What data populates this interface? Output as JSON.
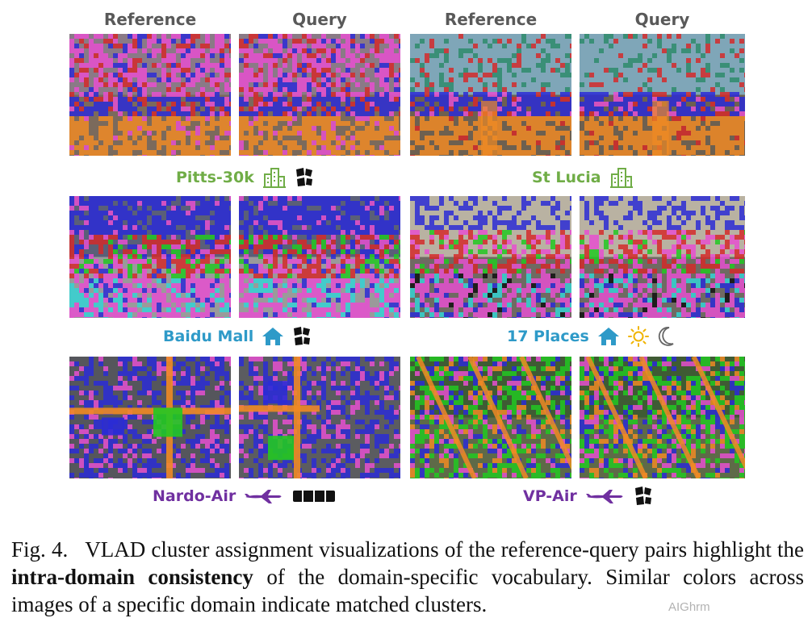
{
  "headers": [
    "Reference",
    "Query",
    "Reference",
    "Query"
  ],
  "domains": [
    {
      "name": "Pitts-30k",
      "color": "#70ad47",
      "icons": [
        "city-buildings-icon",
        "puzzle-pieces-icon"
      ]
    },
    {
      "name": "St Lucia",
      "color": "#70ad47",
      "icons": [
        "city-buildings-icon"
      ]
    },
    {
      "name": "Baidu Mall",
      "color": "#2e9ac8",
      "icons": [
        "house-icon",
        "puzzle-pieces-icon"
      ]
    },
    {
      "name": "17 Places",
      "color": "#2e9ac8",
      "icons": [
        "house-icon",
        "sun-icon",
        "moon-icon"
      ]
    },
    {
      "name": "Nardo-Air",
      "color": "#7030a0",
      "icons": [
        "airplane-icon",
        "film-strip-icon"
      ]
    },
    {
      "name": "VP-Air",
      "color": "#7030a0",
      "icons": [
        "airplane-icon",
        "puzzle-pieces-icon"
      ]
    }
  ],
  "caption": {
    "prefix": "Fig. 4.",
    "text_before": "VLAD cluster assignment visualizations of the reference-query pairs highlight the",
    "bold": "intra-domain consistency",
    "text_after": "of the domain-specific vocabulary. Similar colors across images of a specific domain indicate matched clusters."
  },
  "watermark": "AIGhrm",
  "colors": {
    "cluster_blue": "#2b2bd6",
    "cluster_pink": "#e64fd0",
    "cluster_red": "#d42a2a",
    "cluster_orange": "#f08a24",
    "cluster_green": "#22c822",
    "cluster_cyan": "#34d4d4",
    "cluster_teal": "#2e8b6b"
  }
}
